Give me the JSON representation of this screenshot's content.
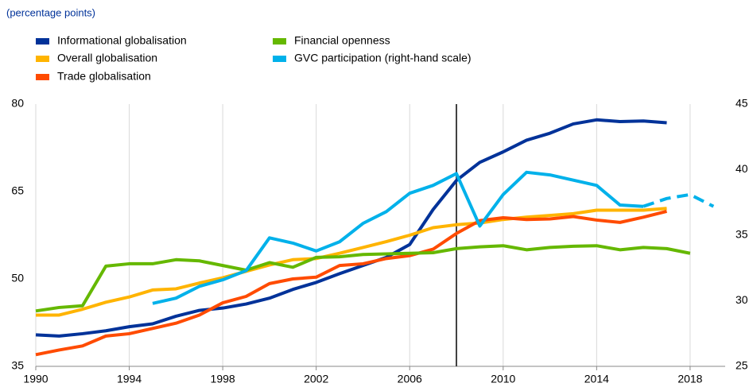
{
  "chart_data": {
    "type": "line",
    "subtitle": "(percentage points)",
    "x": [
      1990,
      1991,
      1992,
      1993,
      1994,
      1995,
      1996,
      1997,
      1998,
      1999,
      2000,
      2001,
      2002,
      2003,
      2004,
      2005,
      2006,
      2007,
      2008,
      2009,
      2010,
      2011,
      2012,
      2013,
      2014,
      2015,
      2016,
      2017,
      2018,
      2019
    ],
    "xlim": [
      1990,
      2019.5
    ],
    "xticks": [
      1990,
      1994,
      1998,
      2002,
      2006,
      2010,
      2014,
      2018
    ],
    "ylim": [
      35,
      80
    ],
    "yticks": [
      35,
      50,
      65,
      80
    ],
    "y2lim": [
      25,
      45
    ],
    "y2ticks": [
      25,
      30,
      35,
      40,
      45
    ],
    "vline": 2008,
    "grid": "x",
    "series": [
      {
        "name": "Informational globalisation",
        "color": "#003299",
        "values": [
          40.4,
          40.2,
          40.6,
          41.1,
          41.8,
          42.3,
          43.6,
          44.6,
          45.0,
          45.7,
          46.7,
          48.2,
          49.4,
          50.9,
          52.3,
          53.7,
          55.9,
          61.9,
          66.9,
          70.0,
          71.8,
          73.8,
          75.0,
          76.6,
          77.3,
          77.0,
          77.1,
          76.8,
          null,
          null
        ]
      },
      {
        "name": "Overall globalisation",
        "color": "#ffb400",
        "values": [
          43.8,
          43.8,
          44.8,
          46.0,
          46.9,
          48.1,
          48.3,
          49.3,
          50.2,
          51.3,
          52.4,
          53.3,
          53.5,
          54.4,
          55.4,
          56.4,
          57.5,
          58.8,
          59.3,
          59.6,
          60.2,
          60.6,
          60.9,
          61.2,
          61.8,
          61.8,
          61.8,
          62.1,
          null,
          null
        ]
      },
      {
        "name": "Trade globalisation",
        "color": "#ff4b00",
        "values": [
          37.0,
          37.8,
          38.5,
          40.2,
          40.6,
          41.5,
          42.4,
          43.8,
          45.9,
          47.0,
          49.2,
          50.0,
          50.3,
          52.3,
          52.6,
          53.5,
          54.0,
          55.1,
          57.8,
          60.0,
          60.5,
          60.2,
          60.3,
          60.7,
          60.1,
          59.7,
          60.6,
          61.6,
          null,
          null
        ]
      },
      {
        "name": "Financial openness",
        "color": "#65b800",
        "values": [
          44.5,
          45.1,
          45.4,
          52.2,
          52.6,
          52.6,
          53.3,
          53.1,
          52.3,
          51.5,
          52.8,
          52.0,
          53.7,
          53.8,
          54.2,
          54.3,
          54.4,
          54.5,
          55.2,
          55.5,
          55.7,
          55.0,
          55.4,
          55.6,
          55.7,
          55.0,
          55.4,
          55.2,
          54.4,
          null
        ]
      },
      {
        "name": "GVC participation (right-hand scale)",
        "color": "#00b1ea",
        "axis": "y2",
        "dash_from": 2016,
        "values": [
          null,
          null,
          null,
          null,
          null,
          29.8,
          30.2,
          31.1,
          31.6,
          32.3,
          34.8,
          34.4,
          33.8,
          34.5,
          35.9,
          36.8,
          38.2,
          38.8,
          39.7,
          35.7,
          38.1,
          39.8,
          39.6,
          39.2,
          38.8,
          37.3,
          37.2,
          37.8,
          38.1,
          37.2
        ]
      }
    ]
  }
}
